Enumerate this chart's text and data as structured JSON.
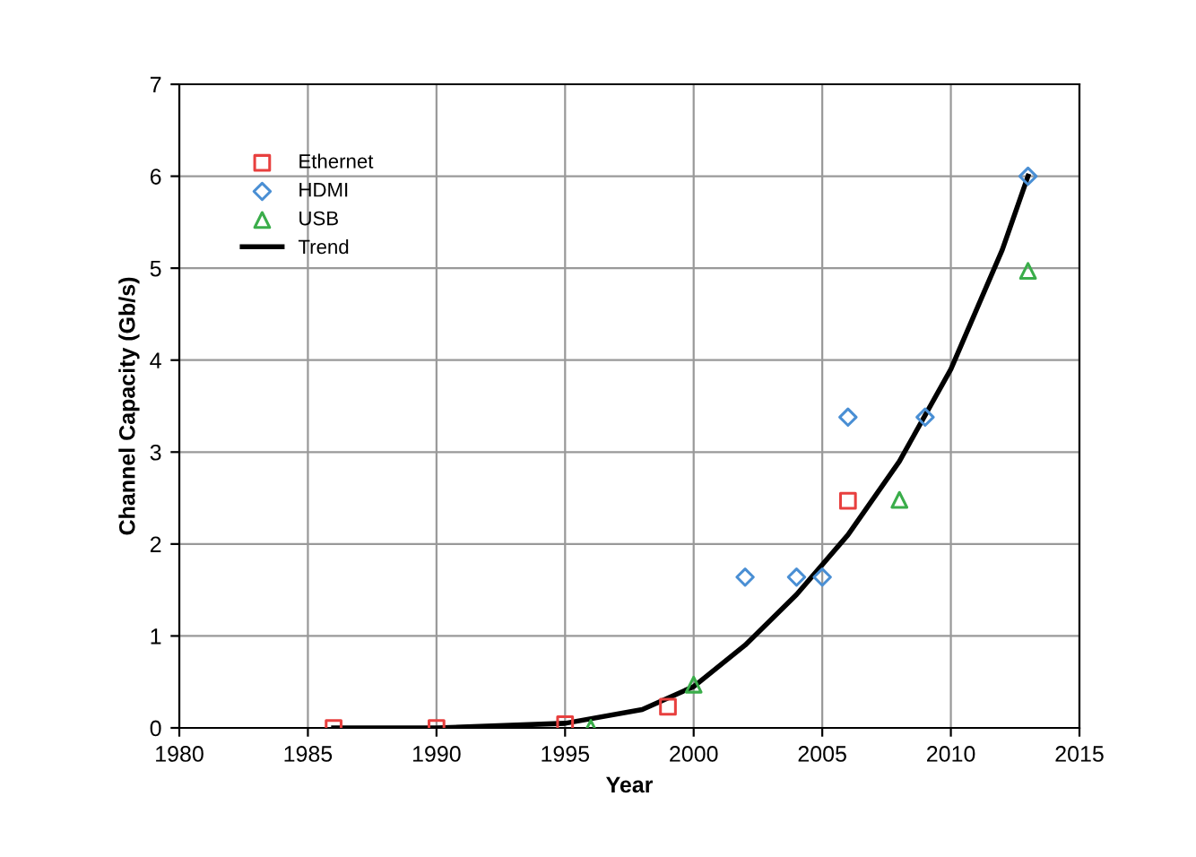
{
  "chart_data": {
    "type": "scatter",
    "xlabel": "Year",
    "ylabel": "Channel Capacity (Gb/s)",
    "xlim": [
      1980,
      2015
    ],
    "xticks": [
      1980,
      1985,
      1990,
      1995,
      2000,
      2005,
      2010,
      2015
    ],
    "ylim": [
      0,
      7
    ],
    "yticks": [
      0,
      1,
      2,
      3,
      4,
      5,
      6,
      7
    ],
    "grid": true,
    "legend": "top left",
    "series": [
      {
        "name": "Ethernet",
        "color": "#e8403f",
        "marker": "square",
        "x": [
          1986,
          1990,
          1995,
          1999,
          2006
        ],
        "values": [
          0,
          0,
          0.04,
          0.23,
          2.47
        ]
      },
      {
        "name": "HDMI",
        "color": "#4a8fd4",
        "marker": "diamond",
        "x": [
          2002,
          2004,
          2005,
          2006,
          2009,
          2013
        ],
        "values": [
          1.64,
          1.64,
          1.64,
          3.38,
          3.38,
          6.0
        ]
      },
      {
        "name": "USB",
        "color": "#3aad4a",
        "marker": "triangle",
        "x": [
          1996,
          2000,
          2008,
          2013
        ],
        "values": [
          0,
          0.47,
          2.48,
          4.97
        ]
      },
      {
        "name": "Trend",
        "type": "line",
        "color": "#000000",
        "marker": "none",
        "x": [
          1986,
          1990,
          1995,
          1998,
          2000,
          2002,
          2004,
          2006,
          2008,
          2010,
          2012,
          2013
        ],
        "values": [
          0,
          0,
          0.05,
          0.2,
          0.45,
          0.9,
          1.45,
          2.1,
          2.9,
          3.9,
          5.2,
          6.0
        ]
      }
    ]
  }
}
